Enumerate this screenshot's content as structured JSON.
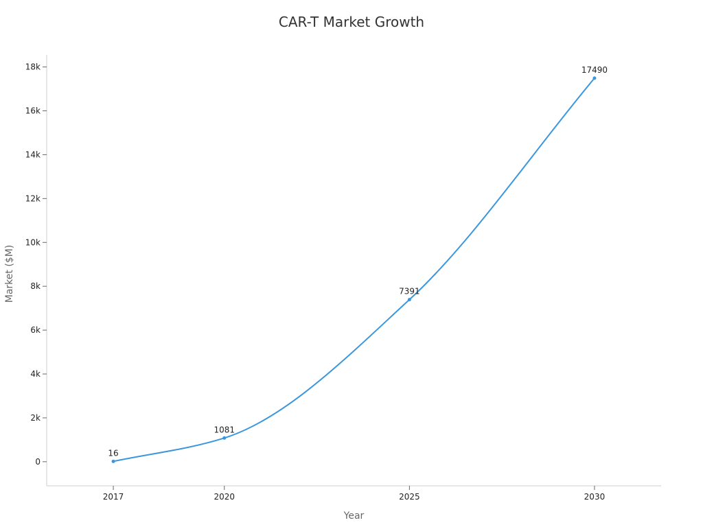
{
  "chart_data": {
    "type": "line",
    "title": "CAR-T Market Growth",
    "xlabel": "Year",
    "ylabel": "Market ($M)",
    "x": [
      2017,
      2020,
      2025,
      2030
    ],
    "x_tick_labels": [
      "2017",
      "2020",
      "2025",
      "2030"
    ],
    "series": [
      {
        "values": [
          16,
          1081,
          7391,
          17490
        ],
        "data_labels": [
          "16",
          "1081",
          "7391",
          "17490"
        ],
        "color": "#3a96dd"
      }
    ],
    "y_ticks": [
      0,
      2000,
      4000,
      6000,
      8000,
      10000,
      12000,
      14000,
      16000,
      18000
    ],
    "y_tick_labels": [
      "0",
      "2k",
      "4k",
      "6k",
      "8k",
      "10k",
      "12k",
      "14k",
      "16k",
      "18k"
    ],
    "ylim": [
      -1100,
      18550
    ],
    "xlim": [
      2015.2,
      2031.8
    ],
    "grid": false,
    "legend": false,
    "smooth": true,
    "colors": {
      "axis": "#cccccc",
      "tick_text": "#222222",
      "axis_label": "#666666",
      "title": "#333333"
    }
  }
}
